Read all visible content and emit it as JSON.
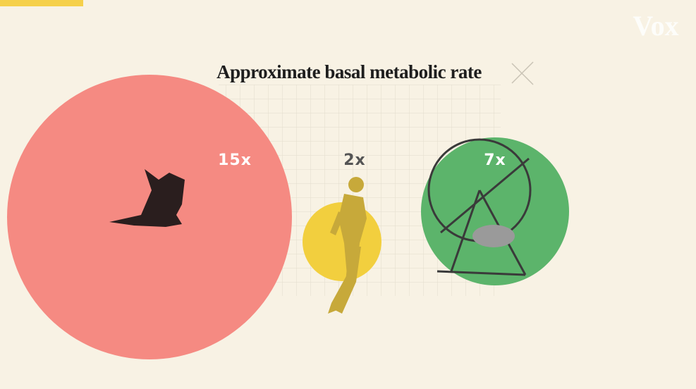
{
  "logo": "Vox",
  "title": "Approximate basal metabolic rate",
  "items": [
    {
      "label": "15x"
    },
    {
      "label": "2x"
    },
    {
      "label": "7x"
    }
  ]
}
